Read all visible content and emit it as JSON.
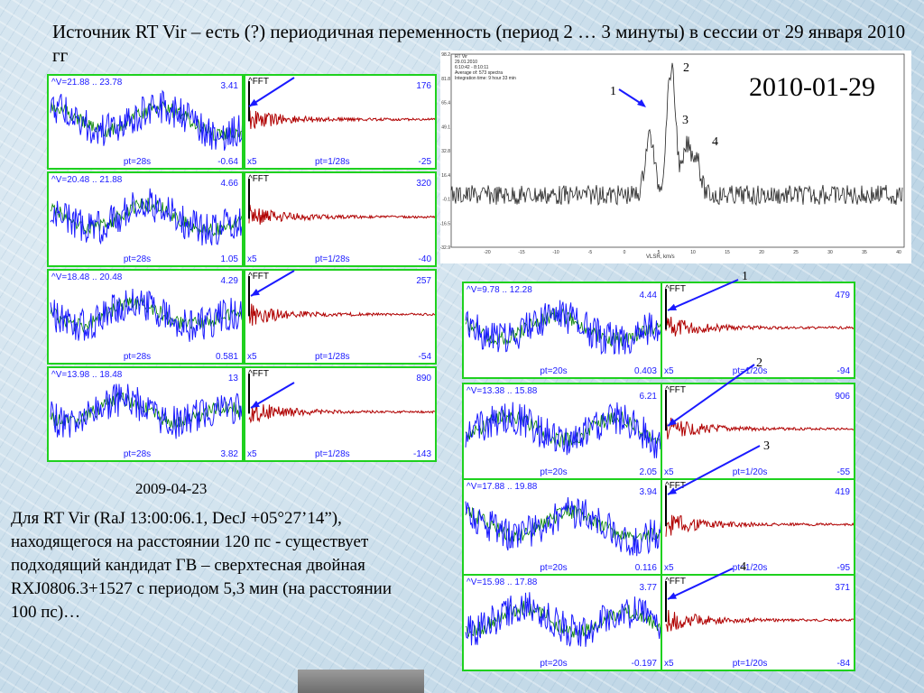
{
  "title": "Источник RT Vir – есть (?) периодичная переменность (период 2 … 3 минуты) в сессии от 29 января 2010 гг",
  "date_small": "2009-04-23",
  "date_big": "2010-01-29",
  "description": "Для RT Vir (RaJ 13:00:06.1, DecJ +05°27’14”), находящегося на расстоянии 120 пс - существует подходящий кандидат ГВ – сверхтесная двойная RXJ0806.3+1527 с периодом 5,3 мин (на расстоянии 100 пс)…",
  "fft_label": "^FFT",
  "colors": {
    "panel_border": "#1fd11f",
    "series": "#1a1aff",
    "noise": "#008000",
    "fft": "#b00000",
    "arrow": "#1a1aff"
  },
  "left_group": {
    "rows": [
      {
        "range": "^V=21.88 .. 23.78",
        "amp": "3.41",
        "pt": "pt=28s",
        "min": "-0.64",
        "fft_max": "176",
        "fft_pt": "pt=1/28s",
        "fft_min": "-25"
      },
      {
        "range": "^V=20.48 .. 21.88",
        "amp": "4.66",
        "pt": "pt=28s",
        "min": "1.05",
        "fft_max": "320",
        "fft_pt": "pt=1/28s",
        "fft_min": "-40"
      },
      {
        "range": "^V=18.48 .. 20.48",
        "amp": "4.29",
        "pt": "pt=28s",
        "min": "0.581",
        "fft_max": "257",
        "fft_pt": "pt=1/28s",
        "fft_min": "-54"
      },
      {
        "range": "^V=13.98 .. 18.48",
        "amp": "13",
        "pt": "pt=28s",
        "min": "3.82",
        "fft_max": "890",
        "fft_pt": "pt=1/28s",
        "fft_min": "-143"
      }
    ]
  },
  "right_group": {
    "rows": [
      {
        "range": "^V=9.78 .. 12.28",
        "amp": "4.44",
        "pt": "pt=20s",
        "min": "0.403",
        "fft_max": "479",
        "fft_pt": "pt=1/20s",
        "fft_min": "-94",
        "num": "1"
      },
      {
        "range": "^V=13.38 .. 15.88",
        "amp": "6.21",
        "pt": "pt=20s",
        "min": "2.05",
        "fft_max": "906",
        "fft_pt": "pt=1/20s",
        "fft_min": "-55",
        "num": "2"
      },
      {
        "range": "^V=17.88 .. 19.88",
        "amp": "3.94",
        "pt": "pt=20s",
        "min": "0.116",
        "fft_max": "419",
        "fft_pt": "pt=1/20s",
        "fft_min": "-95",
        "num": "3"
      },
      {
        "range": "^V=15.98 .. 17.88",
        "amp": "3.77",
        "pt": "pt=20s",
        "min": "-0.197",
        "fft_max": "371",
        "fft_pt": "pt=1/20s",
        "fft_min": "-84",
        "num": "4"
      }
    ]
  },
  "x5": "x5",
  "spectrum": {
    "info": [
      "RT Vir",
      "29.01.2010",
      "6:10:42 - 8:10:11",
      "Average of: 573 spectra",
      "Integration time: 9 hour 33 min"
    ],
    "y_ticks": [
      "98.2",
      "81.8",
      "65.4",
      "49.1",
      "32.8",
      "16.4",
      "-0.1",
      "-16.5",
      "-32.9"
    ],
    "x_ticks": [
      "-20",
      "-15",
      "-10",
      "-5",
      "0",
      "5",
      "10",
      "15",
      "20",
      "25",
      "30",
      "35",
      "40"
    ],
    "xlabel": "VLSR, km/s",
    "peak_labels": [
      "1",
      "2",
      "3",
      "4"
    ]
  }
}
